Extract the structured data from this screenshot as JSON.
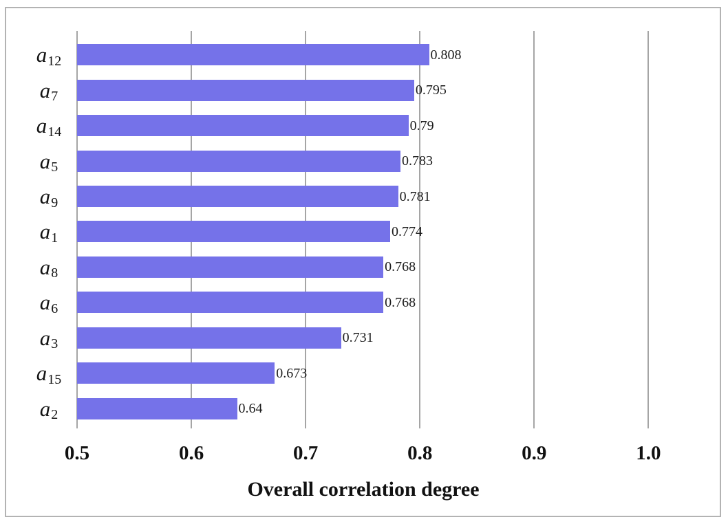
{
  "frame": {
    "border_color": "#b3b3b3",
    "background": "#ffffff"
  },
  "chart_data": {
    "type": "bar",
    "orientation": "horizontal",
    "title": "",
    "xlabel": "Overall correlation degree",
    "ylabel": "",
    "xlim": [
      0.5,
      1.06
    ],
    "baseline": 0.5,
    "grid": "vertical",
    "gridline_color": "#a5a5a5",
    "bar_color": "#7572e9",
    "x_ticks": [
      0.5,
      0.6,
      0.7,
      0.8,
      0.9,
      1.0
    ],
    "x_tick_labels": [
      "0.5",
      "0.6",
      "0.7",
      "0.8",
      "0.9",
      "1.0"
    ],
    "categories": [
      {
        "base": "a",
        "sub": "12"
      },
      {
        "base": "a",
        "sub": "7"
      },
      {
        "base": "a",
        "sub": "14"
      },
      {
        "base": "a",
        "sub": "5"
      },
      {
        "base": "a",
        "sub": "9"
      },
      {
        "base": "a",
        "sub": "1"
      },
      {
        "base": "a",
        "sub": "8"
      },
      {
        "base": "a",
        "sub": "6"
      },
      {
        "base": "a",
        "sub": "3"
      },
      {
        "base": "a",
        "sub": "15"
      },
      {
        "base": "a",
        "sub": "2"
      }
    ],
    "values": [
      0.808,
      0.795,
      0.79,
      0.783,
      0.781,
      0.774,
      0.768,
      0.768,
      0.731,
      0.673,
      0.64
    ],
    "value_labels": [
      "0.808",
      "0.795",
      "0.79",
      "0.783",
      "0.781",
      "0.774",
      "0.768",
      "0.768",
      "0.731",
      "0.673",
      "0.64"
    ]
  }
}
